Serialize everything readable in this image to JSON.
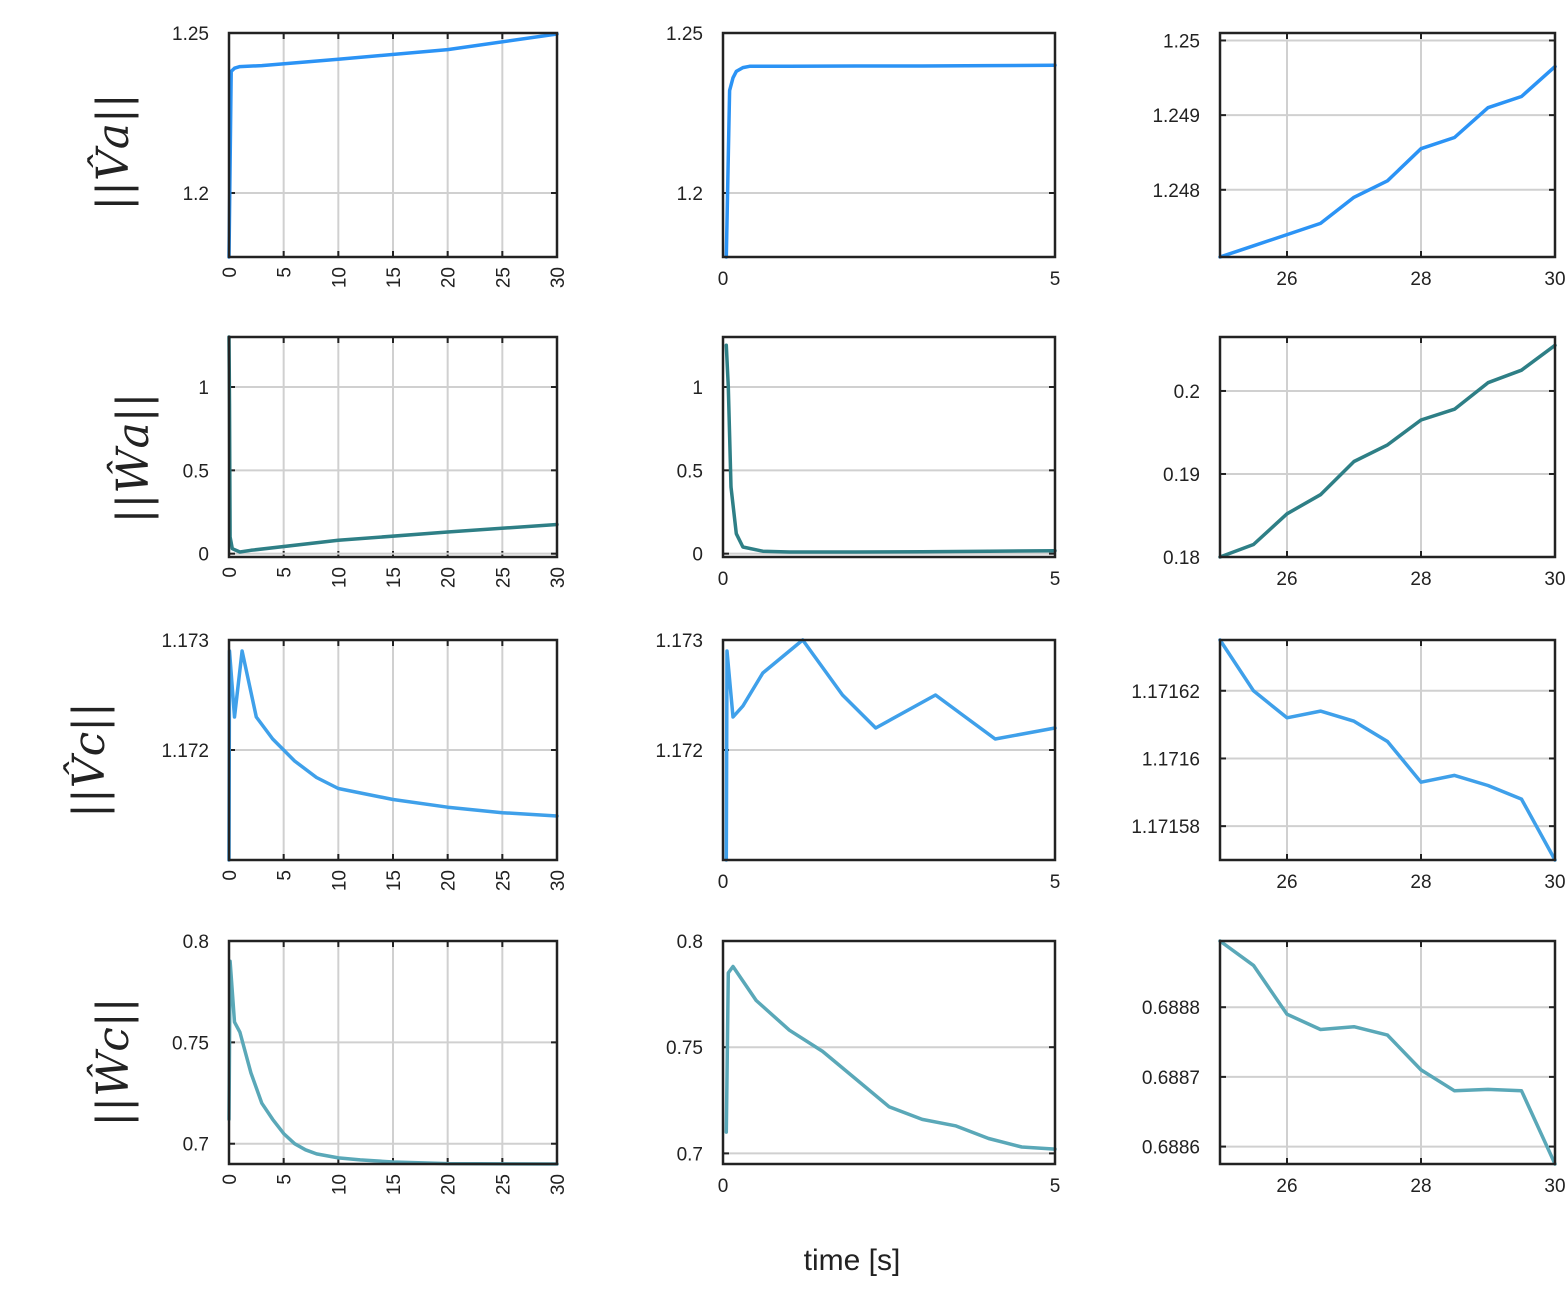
{
  "figure": {
    "xlabel": "time [s]"
  },
  "rows": [
    {
      "label": "||V̂a||",
      "color": "#2b93f5"
    },
    {
      "label": "||Ŵa||",
      "color": "#2e7f86"
    },
    {
      "label": "||V̂c||",
      "color": "#3fa0ea"
    },
    {
      "label": "||Ŵc||",
      "color": "#5aa8b8"
    }
  ],
  "chart_data": [
    {
      "row": 0,
      "col": 0,
      "type": "line",
      "xlim": [
        0,
        30
      ],
      "ylim": [
        1.18,
        1.25
      ],
      "xticks": [
        0,
        5,
        10,
        15,
        20,
        25,
        30
      ],
      "xtick_labels": [
        "0",
        "5",
        "10",
        "15",
        "20",
        "25",
        "30"
      ],
      "yticks": [
        1.2,
        1.25
      ],
      "ytick_labels": [
        "1.2",
        "1.25"
      ],
      "series": [
        {
          "name": "||V̂a||",
          "x": [
            0,
            0.2,
            0.5,
            1,
            3,
            10,
            20,
            30
          ],
          "y": [
            1.18,
            1.238,
            1.239,
            1.2395,
            1.2398,
            1.2418,
            1.2448,
            1.2497
          ]
        }
      ]
    },
    {
      "row": 0,
      "col": 1,
      "type": "line",
      "xlim": [
        0,
        5
      ],
      "ylim": [
        1.18,
        1.25
      ],
      "xticks": [
        0,
        5
      ],
      "xtick_labels": [
        "0",
        "5"
      ],
      "yticks": [
        1.2,
        1.25
      ],
      "ytick_labels": [
        "1.2",
        "1.25"
      ],
      "series": [
        {
          "name": "||V̂a||",
          "x": [
            0.05,
            0.1,
            0.15,
            0.2,
            0.3,
            0.4,
            1,
            2,
            3,
            4,
            5
          ],
          "y": [
            1.18,
            1.232,
            1.236,
            1.238,
            1.2392,
            1.2396,
            1.2396,
            1.2397,
            1.2397,
            1.2398,
            1.2399
          ]
        }
      ]
    },
    {
      "row": 0,
      "col": 2,
      "type": "line",
      "xlim": [
        25,
        30
      ],
      "ylim": [
        1.2471,
        1.2501
      ],
      "xticks": [
        26,
        28,
        30
      ],
      "xtick_labels": [
        "26",
        "28",
        "30"
      ],
      "yticks": [
        1.248,
        1.249,
        1.25
      ],
      "ytick_labels": [
        "1.248",
        "1.249",
        "1.25"
      ],
      "series": [
        {
          "name": "||V̂a||",
          "x": [
            25,
            25.5,
            26,
            26.5,
            27,
            27.5,
            28,
            28.5,
            29,
            29.5,
            30
          ],
          "y": [
            1.2471,
            1.24725,
            1.2474,
            1.24755,
            1.2479,
            1.24812,
            1.24855,
            1.2487,
            1.2491,
            1.24925,
            1.24965
          ]
        }
      ]
    },
    {
      "row": 1,
      "col": 0,
      "type": "line",
      "xlim": [
        0,
        30
      ],
      "ylim": [
        -0.02,
        1.3
      ],
      "xticks": [
        0,
        5,
        10,
        15,
        20,
        25,
        30
      ],
      "xtick_labels": [
        "0",
        "5",
        "10",
        "15",
        "20",
        "25",
        "30"
      ],
      "yticks": [
        0,
        0.5,
        1
      ],
      "ytick_labels": [
        "0",
        "0.5",
        "1"
      ],
      "series": [
        {
          "name": "||Ŵa||",
          "x": [
            0,
            0.05,
            0.1,
            0.3,
            1,
            2,
            10,
            20,
            30
          ],
          "y": [
            1.3,
            0.9,
            0.1,
            0.03,
            0.01,
            0.02,
            0.08,
            0.13,
            0.175
          ]
        }
      ]
    },
    {
      "row": 1,
      "col": 1,
      "type": "line",
      "xlim": [
        0,
        5
      ],
      "ylim": [
        -0.02,
        1.3
      ],
      "xticks": [
        0,
        5
      ],
      "xtick_labels": [
        "0",
        "5"
      ],
      "yticks": [
        0,
        0.5,
        1
      ],
      "ytick_labels": [
        "0",
        "0.5",
        "1"
      ],
      "series": [
        {
          "name": "||Ŵa||",
          "x": [
            0.05,
            0.08,
            0.12,
            0.2,
            0.3,
            0.6,
            1,
            2,
            3,
            4,
            5
          ],
          "y": [
            1.25,
            1.0,
            0.4,
            0.12,
            0.04,
            0.015,
            0.01,
            0.01,
            0.012,
            0.014,
            0.018
          ]
        }
      ]
    },
    {
      "row": 1,
      "col": 2,
      "type": "line",
      "xlim": [
        25,
        30
      ],
      "ylim": [
        0.18,
        0.2065
      ],
      "xticks": [
        26,
        28,
        30
      ],
      "xtick_labels": [
        "26",
        "28",
        "30"
      ],
      "yticks": [
        0.18,
        0.19,
        0.2
      ],
      "ytick_labels": [
        "0.18",
        "0.19",
        "0.2"
      ],
      "series": [
        {
          "name": "||Ŵa||",
          "x": [
            25,
            25.5,
            26,
            26.5,
            27,
            27.5,
            28,
            28.5,
            29,
            29.5,
            30
          ],
          "y": [
            0.18,
            0.1815,
            0.1852,
            0.1875,
            0.1915,
            0.1935,
            0.1965,
            0.1978,
            0.201,
            0.2025,
            0.2055
          ]
        }
      ]
    },
    {
      "row": 2,
      "col": 0,
      "type": "line",
      "xlim": [
        0,
        30
      ],
      "ylim": [
        1.171,
        1.173
      ],
      "xticks": [
        0,
        5,
        10,
        15,
        20,
        25,
        30
      ],
      "xtick_labels": [
        "0",
        "5",
        "10",
        "15",
        "20",
        "25",
        "30"
      ],
      "yticks": [
        1.172,
        1.173
      ],
      "ytick_labels": [
        "1.172",
        "1.173"
      ],
      "series": [
        {
          "name": "||V̂c||",
          "x": [
            0,
            0.05,
            0.5,
            1.2,
            2.5,
            4,
            6,
            8,
            10,
            15,
            20,
            25,
            30
          ],
          "y": [
            1.171,
            1.1729,
            1.1723,
            1.1729,
            1.1723,
            1.1721,
            1.1719,
            1.17175,
            1.17165,
            1.17155,
            1.17148,
            1.17143,
            1.1714
          ]
        }
      ]
    },
    {
      "row": 2,
      "col": 1,
      "type": "line",
      "xlim": [
        0,
        5
      ],
      "ylim": [
        1.171,
        1.173
      ],
      "xticks": [
        0,
        5
      ],
      "xtick_labels": [
        "0",
        "5"
      ],
      "yticks": [
        1.172,
        1.173
      ],
      "ytick_labels": [
        "1.172",
        "1.173"
      ],
      "series": [
        {
          "name": "||V̂c||",
          "x": [
            0.05,
            0.06,
            0.15,
            0.3,
            0.6,
            1.2,
            1.8,
            2.3,
            3.2,
            4.1,
            5
          ],
          "y": [
            1.171,
            1.1729,
            1.1723,
            1.1724,
            1.1727,
            1.173,
            1.1725,
            1.1722,
            1.1725,
            1.1721,
            1.1722
          ]
        }
      ]
    },
    {
      "row": 2,
      "col": 2,
      "type": "line",
      "xlim": [
        25,
        30
      ],
      "ylim": [
        1.17157,
        1.171635
      ],
      "xticks": [
        26,
        28,
        30
      ],
      "xtick_labels": [
        "26",
        "28",
        "30"
      ],
      "yticks": [
        1.17158,
        1.1716,
        1.17162
      ],
      "ytick_labels": [
        "1.17158",
        "1.1716",
        "1.17162"
      ],
      "series": [
        {
          "name": "||V̂c||",
          "x": [
            25,
            25.5,
            26,
            26.5,
            27,
            27.5,
            28,
            28.5,
            29,
            29.5,
            30
          ],
          "y": [
            1.171635,
            1.17162,
            1.171612,
            1.171614,
            1.171611,
            1.171605,
            1.171593,
            1.171595,
            1.171592,
            1.171588,
            1.17157
          ]
        }
      ]
    },
    {
      "row": 3,
      "col": 0,
      "type": "line",
      "xlim": [
        0,
        30
      ],
      "ylim": [
        0.69,
        0.8
      ],
      "xticks": [
        0,
        5,
        10,
        15,
        20,
        25,
        30
      ],
      "xtick_labels": [
        "0",
        "5",
        "10",
        "15",
        "20",
        "25",
        "30"
      ],
      "yticks": [
        0.7,
        0.75,
        0.8
      ],
      "ytick_labels": [
        "0.7",
        "0.75",
        "0.8"
      ],
      "series": [
        {
          "name": "||Ŵc||",
          "x": [
            0,
            0.1,
            0.5,
            1,
            2,
            3,
            4,
            5,
            6,
            7,
            8,
            10,
            12,
            15,
            20,
            30
          ],
          "y": [
            0.712,
            0.79,
            0.76,
            0.755,
            0.735,
            0.72,
            0.712,
            0.705,
            0.7,
            0.697,
            0.695,
            0.693,
            0.692,
            0.691,
            0.6902,
            0.69
          ]
        }
      ]
    },
    {
      "row": 3,
      "col": 1,
      "type": "line",
      "xlim": [
        0,
        5
      ],
      "ylim": [
        0.695,
        0.8
      ],
      "xticks": [
        0,
        5
      ],
      "xtick_labels": [
        "0",
        "5"
      ],
      "yticks": [
        0.7,
        0.75,
        0.8
      ],
      "ytick_labels": [
        "0.7",
        "0.75",
        "0.8"
      ],
      "series": [
        {
          "name": "||Ŵc||",
          "x": [
            0.05,
            0.08,
            0.15,
            0.5,
            1,
            1.5,
            2,
            2.5,
            3,
            3.5,
            4,
            4.5,
            5
          ],
          "y": [
            0.71,
            0.785,
            0.788,
            0.772,
            0.758,
            0.748,
            0.735,
            0.722,
            0.716,
            0.713,
            0.707,
            0.703,
            0.702
          ]
        }
      ]
    },
    {
      "row": 3,
      "col": 2,
      "type": "line",
      "xlim": [
        25,
        30
      ],
      "ylim": [
        0.688575,
        0.688895
      ],
      "xticks": [
        26,
        28,
        30
      ],
      "xtick_labels": [
        "26",
        "28",
        "30"
      ],
      "yticks": [
        0.6886,
        0.6887,
        0.6888
      ],
      "ytick_labels": [
        "0.6886",
        "0.6887",
        "0.6888"
      ],
      "series": [
        {
          "name": "||Ŵc||",
          "x": [
            25,
            25.5,
            26,
            26.5,
            27,
            27.5,
            28,
            28.5,
            29,
            29.5,
            30
          ],
          "y": [
            0.688895,
            0.68886,
            0.68879,
            0.688768,
            0.688772,
            0.68876,
            0.68871,
            0.68868,
            0.688682,
            0.68868,
            0.688575
          ]
        }
      ]
    }
  ]
}
